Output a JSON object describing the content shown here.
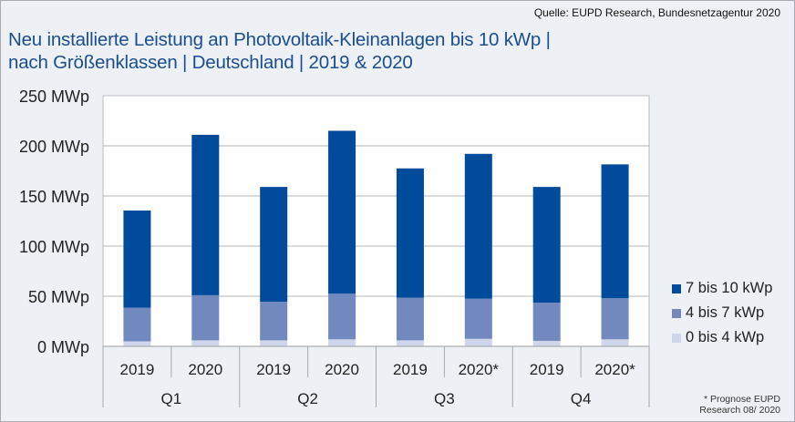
{
  "source": "Quelle: EUPD Research, Bundesnetzagentur 2020",
  "footnote": [
    "* Prognose EUPD",
    "Research 08/ 2020"
  ],
  "chart_data": {
    "type": "bar",
    "stacked": true,
    "title": "Neu installierte Leistung an Photovoltaik-Kleinanlagen bis 10 kWp | nach Größenklassen | Deutschland | 2019 & 2020",
    "title_lines": [
      "Neu installierte Leistung an Photovoltaik-Kleinanlagen bis 10 kWp |",
      "nach Größenklassen | Deutschland | 2019 & 2020"
    ],
    "xlabel": "",
    "ylabel": "",
    "ylim": [
      0,
      250
    ],
    "y_ticks": [
      0,
      50,
      100,
      150,
      200,
      250
    ],
    "y_tick_labels": [
      "0 MWp",
      "50 MWp",
      "100 MWp",
      "150 MWp",
      "200 MWp",
      "250 MWp"
    ],
    "grid": true,
    "groups": [
      "Q1",
      "Q2",
      "Q3",
      "Q4"
    ],
    "categories": [
      "2019",
      "2020",
      "2019",
      "2020",
      "2019",
      "2020*",
      "2019",
      "2020*"
    ],
    "category_groups": [
      "Q1",
      "Q1",
      "Q2",
      "Q2",
      "Q3",
      "Q3",
      "Q4",
      "Q4"
    ],
    "series": [
      {
        "name": "0 bis 4 kWp",
        "color": "#cfd6ec",
        "values": [
          5,
          6,
          6,
          7,
          6,
          7.5,
          5.5,
          7
        ]
      },
      {
        "name": "4 bis 7 kWp",
        "color": "#7289bf",
        "values": [
          33.5,
          45,
          38.5,
          45.5,
          42.5,
          40,
          38,
          41
        ]
      },
      {
        "name": "7 bis 10 kWp",
        "color": "#004b9b",
        "values": [
          97,
          160,
          114.5,
          162.5,
          129,
          144.5,
          115.5,
          133.5
        ]
      }
    ],
    "totals": [
      135.5,
      211,
      159,
      215,
      178,
      192,
      159,
      181.5
    ],
    "legend_position": "right",
    "legend_order": [
      "7 bis 10 kWp",
      "4 bis 7 kWp",
      "0 bis 4 kWp"
    ]
  }
}
